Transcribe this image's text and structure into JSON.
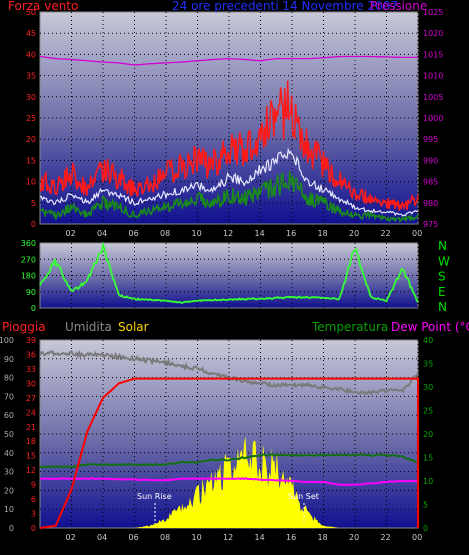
{
  "colors": {
    "wind": "#ff1a1a",
    "wind_avg": "#e8e8ff",
    "wind_low": "#1a8a1a",
    "pressure": "#d400d4",
    "direction": "#33ff33",
    "rain": "#ff0000",
    "humidity": "#7a7a7a",
    "solar": "#ffff00",
    "temperature": "#127012",
    "dewpoint": "#ff00ff",
    "red_axis": "#ff2020",
    "green_axis": "#00aa00"
  },
  "top_chart": {
    "title": "24 ore precedenti 14 Novembre 2007",
    "left_label": "Forza vento",
    "right_label": "Pressione",
    "left_ticks": [
      "0",
      "5",
      "10",
      "15",
      "20",
      "25",
      "30",
      "35",
      "40",
      "45",
      "50"
    ],
    "right_ticks": [
      "975",
      "980",
      "985",
      "990",
      "995",
      "1000",
      "1005",
      "1010",
      "1015",
      "1020",
      "1025"
    ]
  },
  "dir_chart": {
    "left_ticks": [
      "0",
      "90",
      "180",
      "270",
      "360"
    ],
    "compass": [
      "N",
      "W",
      "S",
      "E",
      "N"
    ]
  },
  "x_ticks": [
    "02",
    "04",
    "06",
    "08",
    "10",
    "12",
    "14",
    "16",
    "18",
    "20",
    "22",
    "00"
  ],
  "bottom_chart": {
    "label_rain": "Pioggia",
    "label_humidity": "Umidita",
    "label_solar": "Solar",
    "label_temperature": "Temperatura",
    "label_dewpoint": "Dew Point (°C)",
    "humidity_ticks": [
      "0",
      "10",
      "20",
      "30",
      "40",
      "50",
      "60",
      "70",
      "80",
      "90",
      "100"
    ],
    "rain_ticks": [
      "0",
      "3",
      "6",
      "9",
      "12",
      "15",
      "18",
      "21",
      "24",
      "27",
      "30",
      "33",
      "36",
      "39"
    ],
    "temp_ticks": [
      "0",
      "5",
      "10",
      "15",
      "20",
      "25",
      "30",
      "35",
      "40"
    ],
    "annotation_sunrise": "Sun Rise",
    "annotation_sunset": "Sun Set"
  },
  "chart_data": {
    "type": "line",
    "x_hours": [
      0,
      1,
      2,
      3,
      4,
      5,
      6,
      7,
      8,
      9,
      10,
      11,
      12,
      13,
      14,
      15,
      16,
      17,
      18,
      19,
      20,
      21,
      22,
      23,
      24
    ],
    "wind_scale": [
      0,
      50
    ],
    "pressure_scale": [
      975,
      1025
    ],
    "wind_gust": [
      10,
      9,
      12,
      8,
      13,
      11,
      8,
      9,
      12,
      13,
      15,
      14,
      18,
      17,
      22,
      25,
      28,
      18,
      14,
      10,
      7,
      6,
      5,
      4,
      6
    ],
    "wind_avg": [
      6,
      5,
      7,
      5,
      8,
      7,
      5,
      6,
      7,
      8,
      9,
      8,
      11,
      10,
      13,
      15,
      16,
      10,
      8,
      6,
      4,
      3,
      3,
      2,
      3
    ],
    "wind_low": [
      3,
      2,
      4,
      2,
      5,
      4,
      2,
      3,
      4,
      5,
      6,
      5,
      7,
      6,
      8,
      9,
      10,
      6,
      5,
      3,
      2,
      2,
      1,
      1,
      2
    ],
    "pressure": [
      1014.5,
      1014,
      1013.8,
      1013.5,
      1013.2,
      1013,
      1012.5,
      1012.8,
      1013,
      1013.2,
      1013.5,
      1013.8,
      1014,
      1013.8,
      1013.5,
      1014,
      1014,
      1014,
      1014.2,
      1014.5,
      1014.5,
      1014.5,
      1014.4,
      1014.3,
      1014.3
    ],
    "direction_scale": [
      0,
      360
    ],
    "direction": [
      120,
      260,
      90,
      150,
      340,
      70,
      50,
      45,
      40,
      30,
      40,
      45,
      45,
      50,
      50,
      55,
      60,
      60,
      55,
      50,
      340,
      60,
      40,
      220,
      30
    ],
    "humidity_scale": [
      0,
      100
    ],
    "humidity": [
      93,
      93,
      93,
      92,
      92,
      91,
      90,
      89,
      88,
      86,
      85,
      82,
      80,
      78,
      77,
      76,
      76,
      76,
      75,
      74,
      72,
      72,
      73,
      73,
      82
    ],
    "rain_scale": [
      0,
      39
    ],
    "rain": [
      0,
      0.5,
      8,
      20,
      27,
      30,
      31,
      31,
      31,
      31,
      31,
      31,
      31,
      31,
      31,
      31,
      31,
      31,
      31,
      31,
      31,
      31,
      31,
      31,
      31
    ],
    "temperature_scale": [
      0,
      40
    ],
    "temperature": [
      13,
      13,
      13,
      13.5,
      13.5,
      13.5,
      13.5,
      13.5,
      13.5,
      14,
      14,
      14.5,
      14.5,
      15,
      15.5,
      15.5,
      15.5,
      15.5,
      15.5,
      15.5,
      15.5,
      15.5,
      15.5,
      15.2,
      14
    ],
    "dewpoint": [
      10.5,
      10.5,
      10.5,
      10.5,
      10.5,
      10.4,
      10.3,
      10.2,
      10.2,
      10.5,
      10.5,
      10.5,
      10.5,
      10.5,
      10.3,
      10.2,
      10.0,
      9.8,
      9.8,
      9.2,
      9.2,
      9.5,
      9.8,
      10.0,
      10.0
    ],
    "solar": [
      0,
      0,
      0,
      0,
      0,
      0,
      0,
      0.5,
      2,
      4,
      7,
      10,
      13,
      15,
      14,
      13,
      8,
      3,
      0.5,
      0,
      0,
      0,
      0,
      0,
      0
    ]
  }
}
